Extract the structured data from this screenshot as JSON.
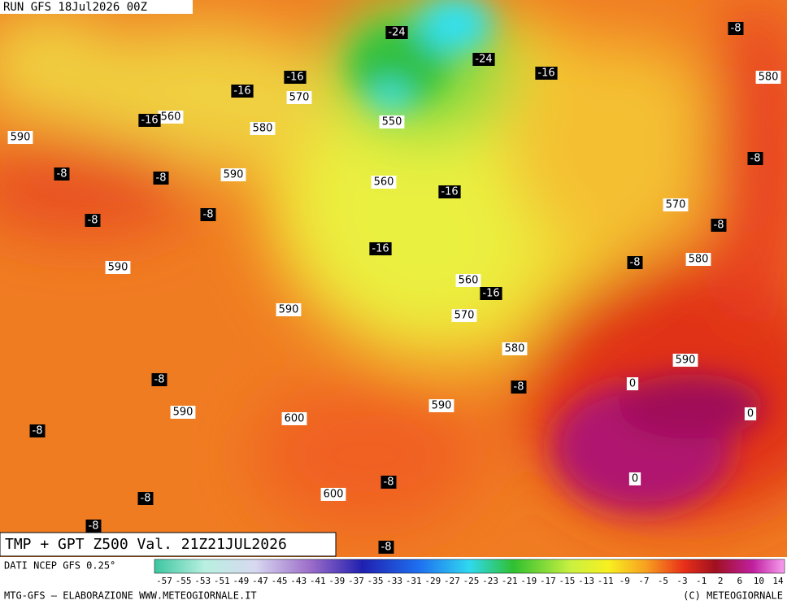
{
  "header": {
    "run": "RUN GFS 18Jul2026 00Z"
  },
  "map": {
    "title": "TMP + GPT Z500 Val. 21Z21JUL2026",
    "height_labels": [
      "580",
      "570",
      "560",
      "580",
      "590",
      "550",
      "590",
      "560",
      "570",
      "580",
      "590",
      "560",
      "590",
      "570",
      "580",
      "590",
      "590",
      "590",
      "600",
      "600"
    ],
    "temperature_labels": [
      "-24",
      "-24",
      "-16",
      "-8",
      "-16",
      "-16",
      "-16",
      "-8",
      "-8",
      "-8",
      "-16",
      "-8",
      "-8",
      "-8",
      "-16",
      "-8",
      "-16",
      "-8",
      "-8",
      "-8",
      "-8",
      "-8",
      "-8",
      "-8"
    ],
    "zero_labels": [
      "0",
      "0",
      "0"
    ]
  },
  "legend": {
    "source": "DATI NCEP GFS 0.25°",
    "scale_labels": [
      -57,
      -55,
      -53,
      -51,
      -49,
      -47,
      -45,
      -43,
      -41,
      -39,
      -37,
      -35,
      -33,
      -31,
      -29,
      -27,
      -25,
      -23,
      -21,
      -19,
      -17,
      -15,
      -13,
      -11,
      -9,
      -7,
      -5,
      -3,
      -1,
      2,
      6,
      10,
      14
    ]
  },
  "footer": {
    "left": "MTG-GFS — ELABORAZIONE WWW.METEOGIORNALE.IT",
    "right": "(C) METEOGIORNALE"
  }
}
